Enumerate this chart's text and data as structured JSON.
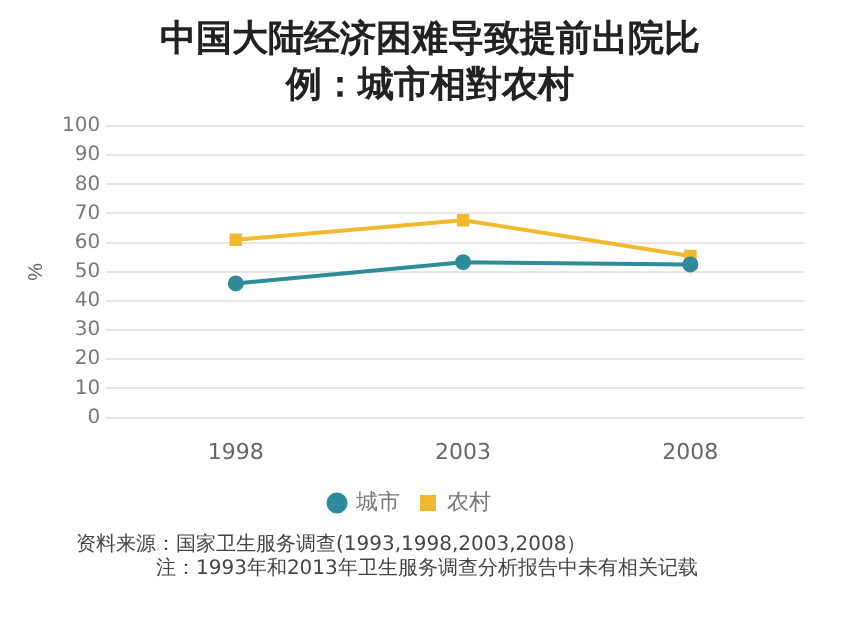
{
  "chart_data": {
    "type": "line",
    "title": "中国大陆经济困难导致提前出院比例：城市相對农村",
    "categories": [
      "1998",
      "2003",
      "2008"
    ],
    "series": [
      {
        "name": "城市",
        "color": "#2e8b9a",
        "values": [
          46,
          53.3,
          52.5
        ],
        "marker": "circle"
      },
      {
        "name": "农村",
        "color": "#f0b92e",
        "values": [
          61,
          67.7,
          55.4
        ],
        "marker": "square"
      }
    ],
    "ylabel": "%",
    "ylim": [
      0,
      100
    ],
    "yticks": [
      0,
      10,
      20,
      30,
      40,
      50,
      60,
      70,
      80,
      90,
      100
    ],
    "grid": "y",
    "legend": "bottom",
    "annotations": [
      "资料来源：国家卫生服务调查(1993,1998,2003,2008）",
      "注：1993年和2013年卫生服务调查分析报告中未有相关记载"
    ]
  }
}
